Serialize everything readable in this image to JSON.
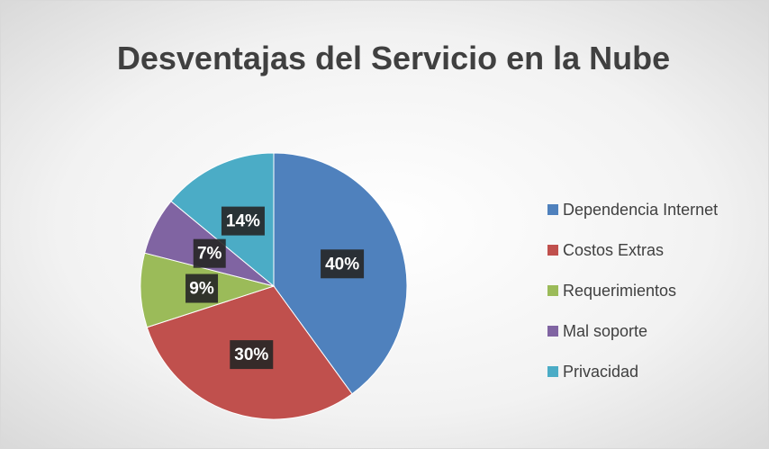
{
  "chart_data": {
    "type": "pie",
    "title": "Desventajas del Servicio en la Nube",
    "categories": [
      "Dependencia Internet",
      "Costos Extras",
      "Requerimientos",
      "Mal soporte",
      "Privacidad"
    ],
    "values": [
      40,
      30,
      9,
      7,
      14
    ],
    "value_labels": [
      "40%",
      "30%",
      "9%",
      "7%",
      "14%"
    ],
    "colors": [
      "#4f81bd",
      "#c0504d",
      "#9bbb59",
      "#8064a2",
      "#4bacc6"
    ],
    "legend": "right"
  }
}
